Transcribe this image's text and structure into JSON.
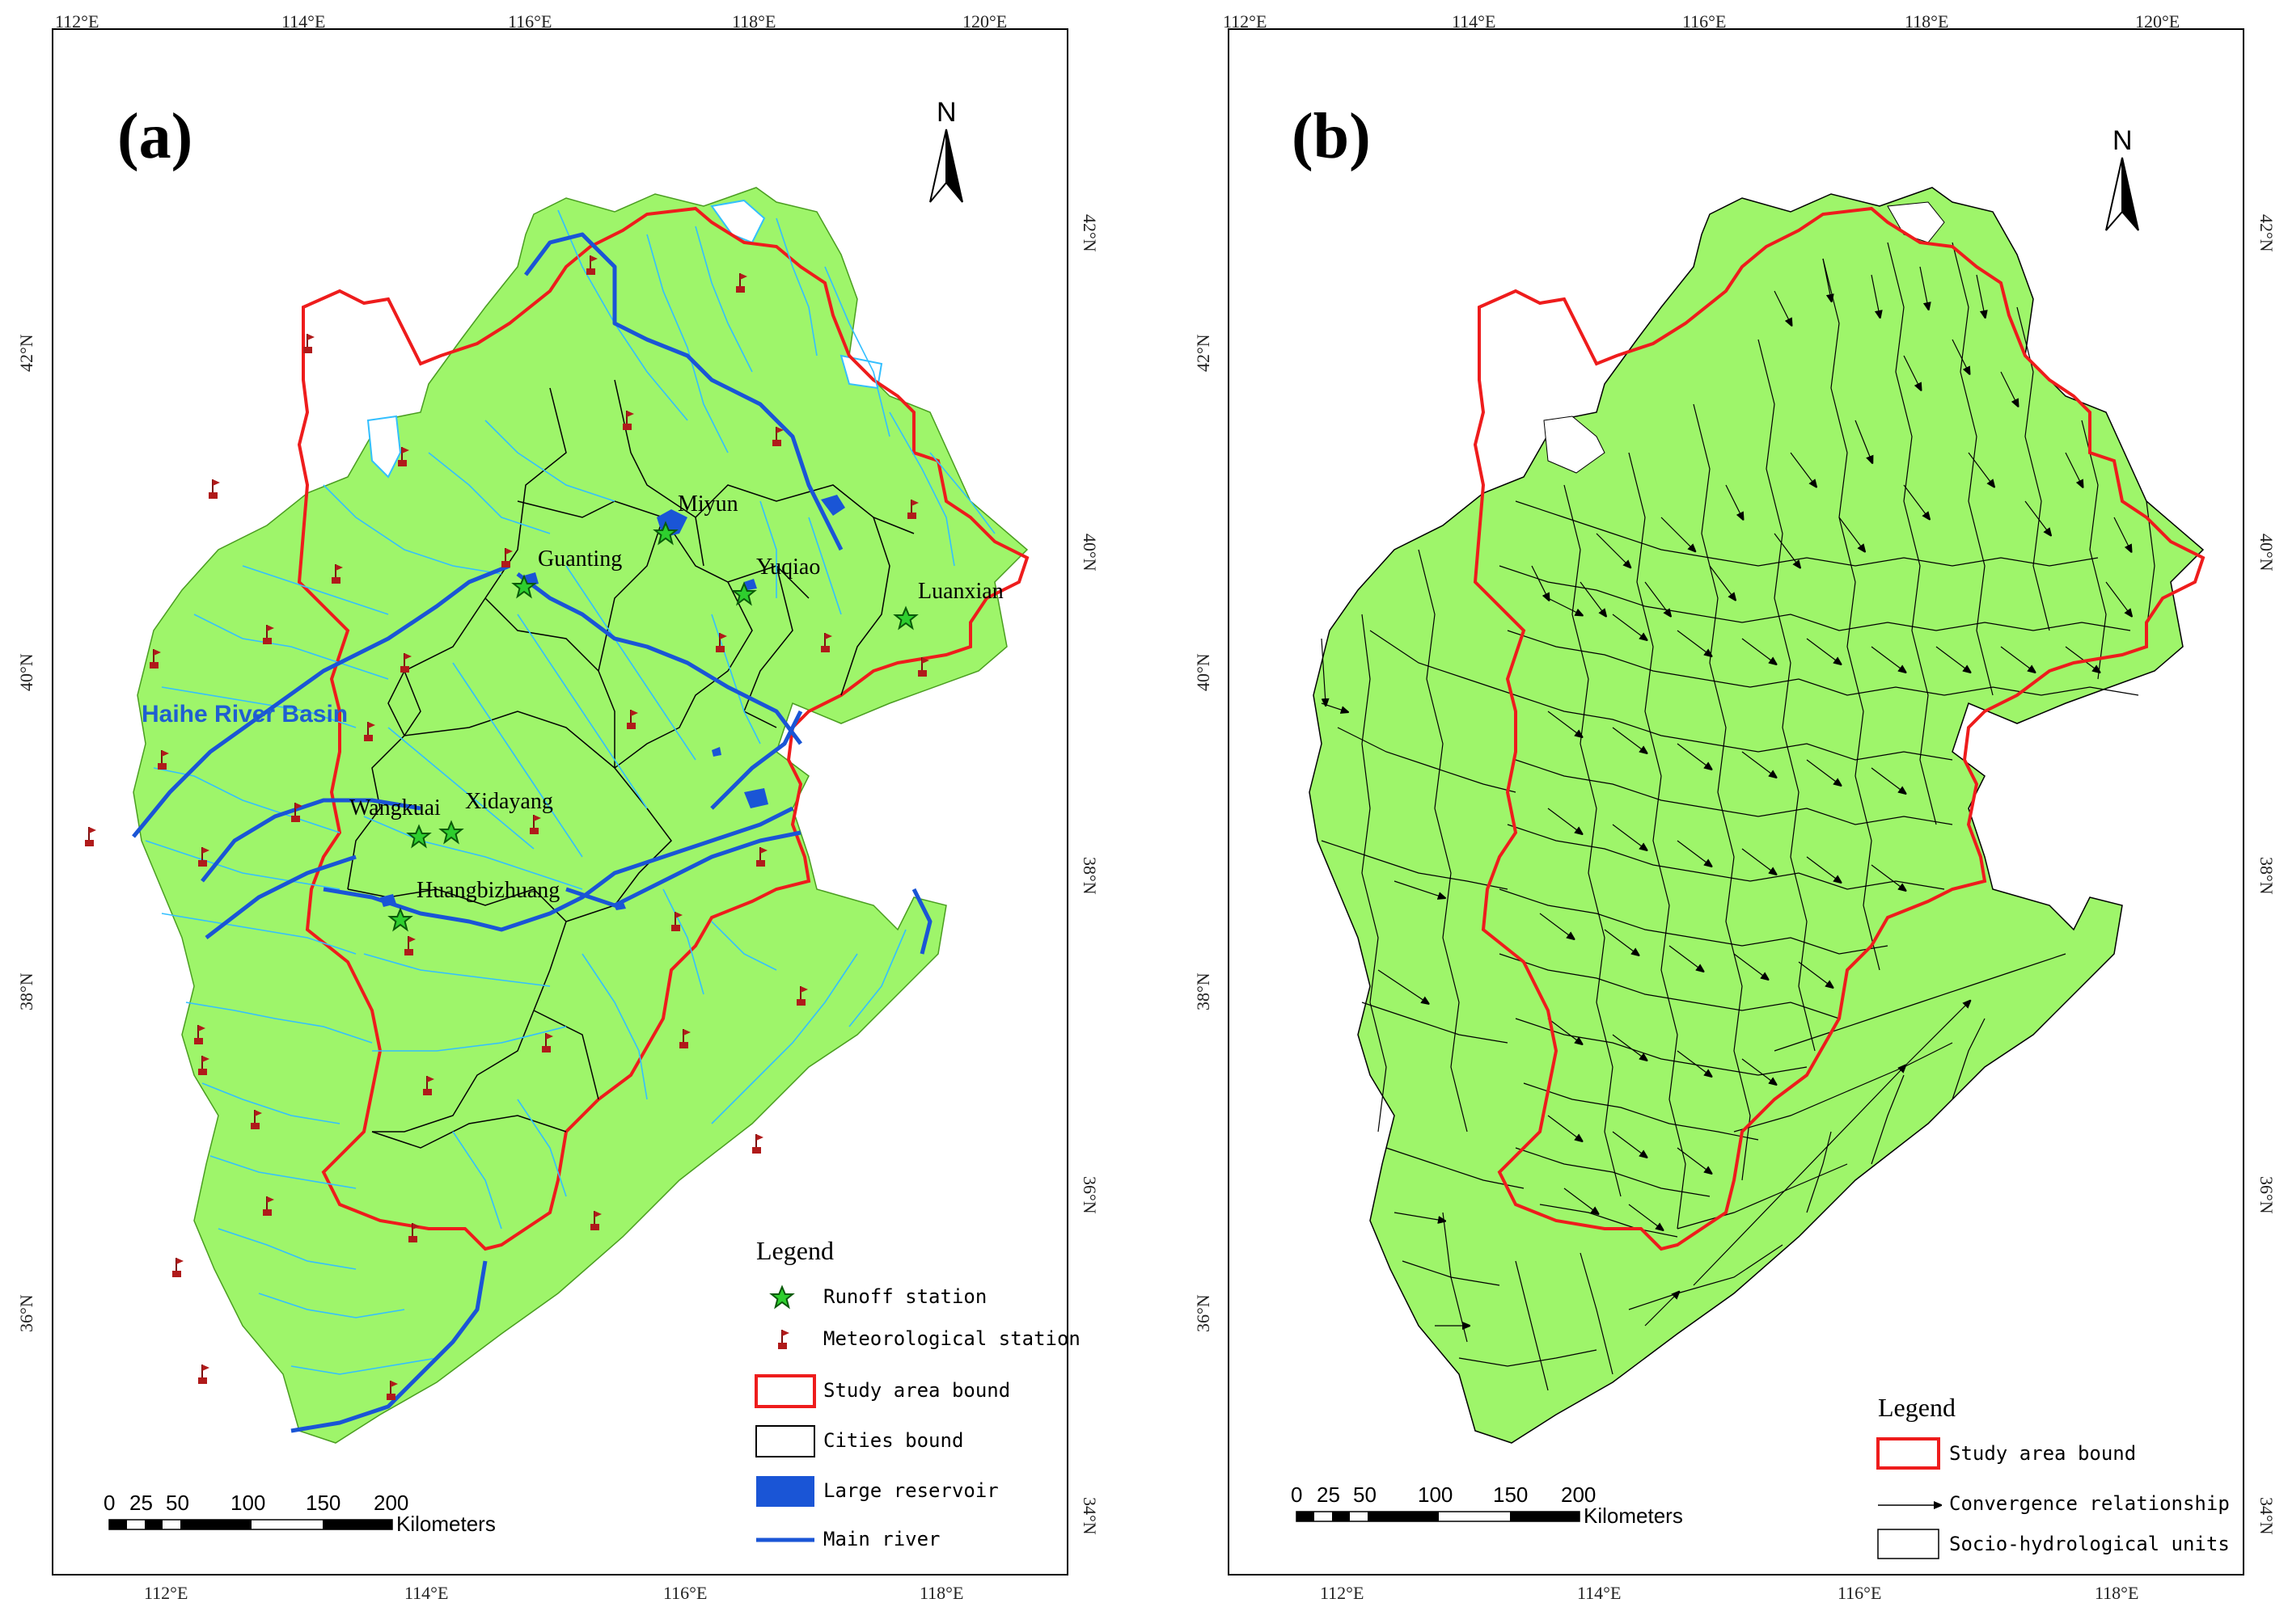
{
  "panel_a": {
    "label": "(a)",
    "top_ticks": [
      "112°E",
      "114°E",
      "116°E",
      "118°E",
      "120°E"
    ],
    "bottom_ticks": [
      "112°E",
      "114°E",
      "116°E",
      "118°E"
    ],
    "left_ticks": [
      "42°N",
      "40°N",
      "38°N",
      "36°N"
    ],
    "right_ticks": [
      "42°N",
      "40°N",
      "38°N",
      "36°N",
      "34°N"
    ],
    "north": "N",
    "basin_label": "Haihe River Basin",
    "runoff_stations": [
      "Miyun",
      "Guanting",
      "Yuqiao",
      "Luanxian",
      "Wangkuai",
      "Xidayang",
      "Huangbizhuang"
    ],
    "legend": {
      "title": "Legend",
      "items": [
        "Runoff station",
        "Meteorological station",
        "Study area bound",
        "Cities bound",
        "Large reservoir",
        "Main river"
      ]
    },
    "scale": {
      "numbers": [
        "0",
        "25",
        "50",
        "100",
        "150",
        "200"
      ],
      "unit": "Kilometers"
    }
  },
  "panel_b": {
    "label": "(b)",
    "top_ticks": [
      "112°E",
      "114°E",
      "116°E",
      "118°E",
      "120°E"
    ],
    "bottom_ticks": [
      "112°E",
      "114°E",
      "116°E",
      "118°E"
    ],
    "left_ticks": [
      "42°N",
      "40°N",
      "38°N",
      "36°N"
    ],
    "right_ticks": [
      "42°N",
      "40°N",
      "38°N",
      "36°N",
      "34°N"
    ],
    "north": "N",
    "legend": {
      "title": "Legend",
      "items": [
        "Study area bound",
        "Convergence relationship",
        "Socio-hydrological units"
      ]
    },
    "scale": {
      "numbers": [
        "0",
        "25",
        "50",
        "100",
        "150",
        "200"
      ],
      "unit": "Kilometers"
    }
  },
  "colors": {
    "land": "#9ef56a",
    "study_bound": "#ee1c1c",
    "river": "#33bfff",
    "main_river": "#1a55d6",
    "reservoir": "#1a55d6",
    "runoff_star": "#2ecf2e",
    "met_station": "#b01a1a"
  },
  "icons": [
    "north-arrow-icon",
    "star-icon",
    "flag-icon"
  ]
}
